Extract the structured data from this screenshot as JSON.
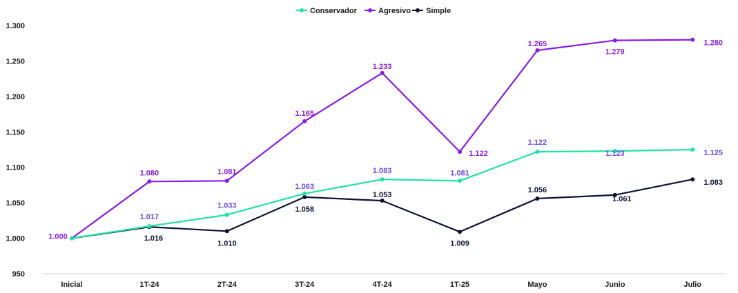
{
  "chart_data": {
    "type": "line",
    "title": "",
    "xlabel": "",
    "ylabel": "",
    "categories": [
      "Inicial",
      "1T-24",
      "2T-24",
      "3T-24",
      "4T-24",
      "1T-25",
      "Mayo",
      "Junio",
      "Julio"
    ],
    "ylim": [
      950,
      1300
    ],
    "yticks": [
      950,
      1000,
      1050,
      1100,
      1150,
      1200,
      1250,
      1300
    ],
    "ytick_labels": [
      "950",
      "1.000",
      "1.050",
      "1.100",
      "1.150",
      "1.200",
      "1.250",
      "1.300"
    ],
    "grid": false,
    "legend_position": "top-center",
    "series": [
      {
        "name": "Conservador",
        "color": "#1ee3a6",
        "label_color": "#6a4cf0",
        "values": [
          1000,
          1017,
          1033,
          1063,
          1083,
          1081,
          1122,
          1123,
          1125
        ],
        "labels": [
          "",
          "1.017",
          "1.033",
          "1.063",
          "1.083",
          "1.081",
          "1.122",
          "1.123",
          "1.125"
        ]
      },
      {
        "name": "Agresivo",
        "color": "#8a1be2",
        "label_color": "#8a1be2",
        "values": [
          1000,
          1080,
          1081,
          1165,
          1233,
          1122,
          1265,
          1279,
          1280
        ],
        "labels": [
          "1.000",
          "1.080",
          "1.081",
          "1.165",
          "1.233",
          "1.122",
          "1.265",
          "1.279",
          "1.280"
        ]
      },
      {
        "name": "Simple",
        "color": "#0d1235",
        "label_color": "#0d1235",
        "values": [
          1000,
          1016,
          1010,
          1058,
          1053,
          1009,
          1056,
          1061,
          1083
        ],
        "labels": [
          "",
          "1.016",
          "1.010",
          "1.058",
          "1.053",
          "1.009",
          "1.056",
          "1.061",
          "1.083"
        ]
      }
    ]
  }
}
